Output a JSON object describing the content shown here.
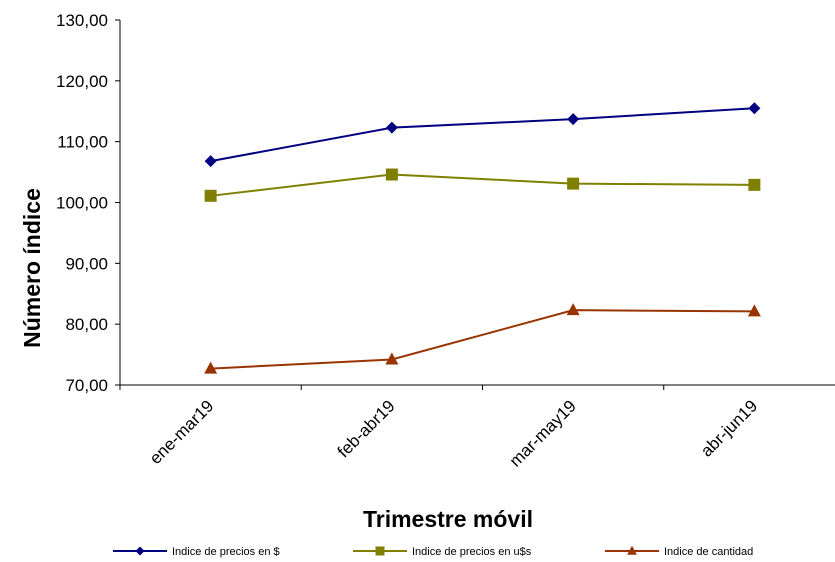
{
  "chart_data": {
    "type": "line",
    "xlabel": "Trimestre móvil",
    "ylabel": "Número índice",
    "categories": [
      "ene-mar19",
      "feb-abr19",
      "mar-may19",
      "abr-jun19"
    ],
    "ylim": [
      70,
      130
    ],
    "yticks": [
      "70,00",
      "80,00",
      "90,00",
      "100,00",
      "110,00",
      "120,00",
      "130,00"
    ],
    "grid": false,
    "legend_position": "bottom",
    "series": [
      {
        "name": "Indice de precios en $",
        "values": [
          106.8,
          112.3,
          113.7,
          115.5
        ],
        "color": "#000080",
        "marker": "diamond"
      },
      {
        "name": "Indice de precios en u$s",
        "values": [
          101.1,
          104.6,
          103.1,
          102.9
        ],
        "color": "#808000",
        "marker": "square"
      },
      {
        "name": "Indice de cantidad",
        "values": [
          72.7,
          74.2,
          82.3,
          82.1
        ],
        "color": "#993300",
        "marker": "triangle"
      }
    ]
  }
}
